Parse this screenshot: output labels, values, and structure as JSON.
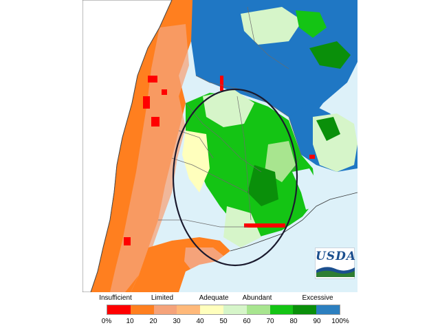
{
  "legend": {
    "categories": [
      "Insufficient",
      "Limited",
      "Adequate",
      "Abundant",
      "Excessive"
    ],
    "ticks": [
      "0%",
      "10",
      "20",
      "30",
      "40",
      "50",
      "60",
      "70",
      "80",
      "90",
      "100%"
    ],
    "colors": [
      "#ff0000",
      "#ff7f1f",
      "#f5a37a",
      "#ffb97a",
      "#ffffbd",
      "#d6f5c9",
      "#a8e58f",
      "#14c414",
      "#0a8f0a",
      "#2c7fbf"
    ]
  },
  "colors": {
    "ocean": "#ddf1f9",
    "chile": "#ffffff",
    "soil_dry": "#ff7f1f",
    "soil_wet": "#1f77c4",
    "outline": "#1a1a2e"
  },
  "logo": {
    "text": "USDA"
  }
}
